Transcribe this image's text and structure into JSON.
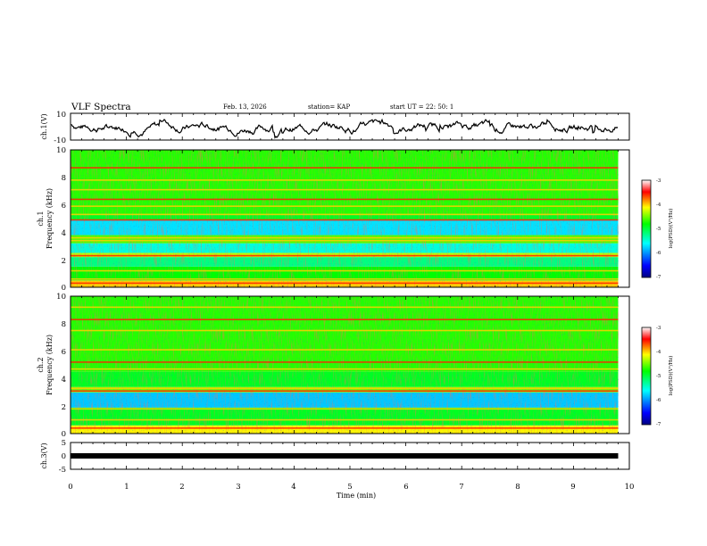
{
  "header": {
    "title": "VLF Spectra",
    "date": "Feb. 13, 2026",
    "station": "station= KAP",
    "start": "start  UT =   22: 50: 1"
  },
  "chart_data": [
    {
      "type": "line",
      "name": "ch1-voltage",
      "ylabel": "ch.1(V)",
      "ylim": [
        -10,
        10
      ],
      "ytick_labels": [
        "10",
        "-10"
      ],
      "xlim": [
        0,
        10
      ],
      "data_end_min": 9.8,
      "description_series": "ch.1 voltage waveform"
    },
    {
      "type": "heatmap",
      "name": "ch1-spectrogram",
      "ylabel_line1": "ch.1",
      "ylabel_line2": "Frequency  (kHz)",
      "ylim": [
        0,
        10
      ],
      "ytick_labels": [
        "0",
        "2",
        "4",
        "6",
        "8",
        "10"
      ],
      "xlim": [
        0,
        10
      ],
      "data_end_min": 9.8,
      "bands": [
        {
          "from": 0.0,
          "to": 0.5,
          "level": -4.0
        },
        {
          "from": 0.5,
          "to": 1.5,
          "level": -4.8
        },
        {
          "from": 1.5,
          "to": 2.2,
          "level": -5.2
        },
        {
          "from": 2.2,
          "to": 2.5,
          "level": -4.3
        },
        {
          "from": 2.5,
          "to": 3.2,
          "level": -5.5
        },
        {
          "from": 3.2,
          "to": 3.8,
          "level": -4.6
        },
        {
          "from": 3.8,
          "to": 4.9,
          "level": -5.7
        },
        {
          "from": 4.9,
          "to": 5.3,
          "level": -4.9
        },
        {
          "from": 5.3,
          "to": 10.0,
          "level": -4.7
        }
      ],
      "lines_khz": [
        0.3,
        0.6,
        1.2,
        2.3,
        3.4,
        3.6,
        4.9,
        5.3,
        5.9,
        6.4,
        7.1,
        7.8,
        8.7
      ]
    },
    {
      "type": "heatmap",
      "name": "ch2-spectrogram",
      "ylabel_line1": "ch.2",
      "ylabel_line2": "Frequency  (kHz)",
      "ylim": [
        0,
        10
      ],
      "ytick_labels": [
        "0",
        "2",
        "4",
        "6",
        "8",
        "10"
      ],
      "xlim": [
        0,
        10
      ],
      "data_end_min": 9.8,
      "bands": [
        {
          "from": 0.0,
          "to": 0.6,
          "level": -4.1
        },
        {
          "from": 0.6,
          "to": 1.9,
          "level": -4.9
        },
        {
          "from": 1.9,
          "to": 3.0,
          "level": -5.8
        },
        {
          "from": 3.0,
          "to": 3.4,
          "level": -4.5
        },
        {
          "from": 3.4,
          "to": 4.5,
          "level": -4.9
        },
        {
          "from": 4.5,
          "to": 10.0,
          "level": -4.7
        }
      ],
      "lines_khz": [
        0.4,
        1.0,
        1.8,
        3.1,
        3.3,
        4.7,
        5.2,
        6.1,
        7.5,
        8.3,
        9.2
      ]
    },
    {
      "type": "line",
      "name": "ch3-voltage",
      "ylabel": "ch.3(V)",
      "ylim": [
        -5,
        5
      ],
      "ytick_labels": [
        "5",
        "0",
        "-5"
      ],
      "xlim": [
        0,
        10
      ],
      "data_end_min": 9.8,
      "level_v": 0
    }
  ],
  "x_axis": {
    "label": "Time  (min)",
    "tick_labels": [
      "0",
      "1",
      "2",
      "3",
      "4",
      "5",
      "6",
      "7",
      "8",
      "9",
      "10"
    ]
  },
  "colorbars": [
    {
      "label": "log(PSD)(V²/Hz)",
      "range": [
        -7,
        -3
      ],
      "tick_labels": [
        "-3",
        "-4",
        "-5",
        "-6",
        "-7"
      ]
    },
    {
      "label": "log(PSD)(V²/Hz)",
      "range": [
        -7,
        -3
      ],
      "tick_labels": [
        "-3",
        "-4",
        "-5",
        "-6",
        "-7"
      ]
    }
  ],
  "colors": {
    "ink": "#000000",
    "colormap": [
      "#000080",
      "#0000ff",
      "#00ffff",
      "#00ff00",
      "#ffff00",
      "#ff0000",
      "#ffffff"
    ]
  }
}
